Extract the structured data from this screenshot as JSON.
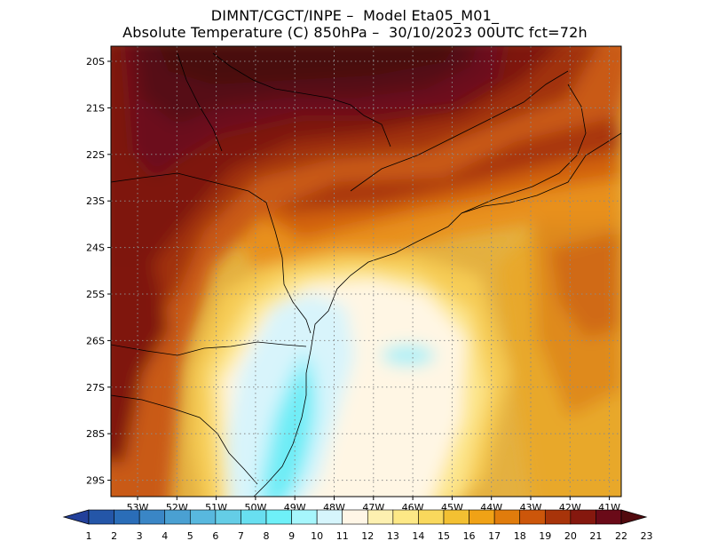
{
  "title": {
    "line1": "DIMNT/CGCT/INPE –  Model Eta05_M01_",
    "line2": "Absolute Temperature (C) 850hPa –  30/10/2023 00UTC fct=72h"
  },
  "map": {
    "lon_labels": [
      "53W",
      "52W",
      "51W",
      "50W",
      "49W",
      "48W",
      "47W",
      "46W",
      "45W",
      "44W",
      "43W",
      "42W",
      "41W"
    ],
    "lat_labels": [
      "20S",
      "21S",
      "22S",
      "23S",
      "24S",
      "25S",
      "26S",
      "27S",
      "28S",
      "29S"
    ],
    "grid": "dotted"
  },
  "colorbar": {
    "labels": [
      "1",
      "2",
      "3",
      "4",
      "5",
      "6",
      "7",
      "8",
      "9",
      "10",
      "11",
      "12",
      "13",
      "14",
      "15",
      "16",
      "17",
      "18",
      "19",
      "20",
      "21",
      "22",
      "23"
    ],
    "colors": [
      "#23409a",
      "#2456a8",
      "#2a6db8",
      "#3a86c6",
      "#4aa0d2",
      "#58b8de",
      "#64cde6",
      "#68dff0",
      "#6ef0f8",
      "#a6f6fc",
      "#d6f5fc",
      "#fff6e6",
      "#fdf0b0",
      "#fde886",
      "#f9d85c",
      "#f3c032",
      "#f0a216",
      "#e07c0c",
      "#cc560a",
      "#a8340a",
      "#85180e",
      "#6a0a18",
      "#520a0e"
    ]
  }
}
